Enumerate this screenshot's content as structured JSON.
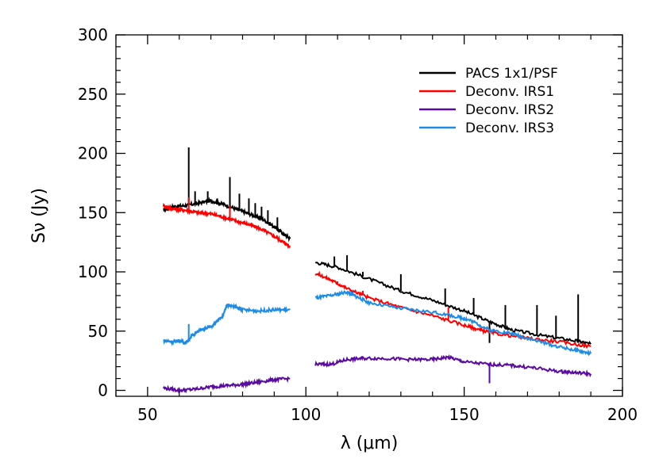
{
  "chart_data": {
    "type": "line",
    "title": "",
    "xlabel": "λ (μm)",
    "ylabel": "Sν (Jy)",
    "xlim": [
      40,
      200
    ],
    "ylim": [
      -5,
      300
    ],
    "xticks": [
      50,
      100,
      150,
      200
    ],
    "yticks": [
      0,
      50,
      100,
      150,
      200,
      250,
      300
    ],
    "grid": false,
    "legend_position": "top-right",
    "series": [
      {
        "name": "PACS 1x1/PSF",
        "color": "#000000",
        "segments": [
          [
            [
              55,
              152
            ],
            [
              58,
              155
            ],
            [
              62,
              156
            ],
            [
              66,
              158
            ],
            [
              70,
              160
            ],
            [
              74,
              157
            ],
            [
              78,
              153
            ],
            [
              82,
              149
            ],
            [
              86,
              145
            ],
            [
              90,
              138
            ],
            [
              93,
              132
            ],
            [
              95,
              128
            ]
          ],
          [
            [
              103,
              108
            ],
            [
              110,
              104
            ],
            [
              120,
              94
            ],
            [
              130,
              84
            ],
            [
              140,
              76
            ],
            [
              150,
              67
            ],
            [
              158,
              58
            ],
            [
              165,
              51
            ],
            [
              175,
              46
            ],
            [
              185,
              42
            ],
            [
              190,
              39
            ]
          ]
        ],
        "spikes": [
          [
            63,
            205
          ],
          [
            65,
            168
          ],
          [
            69,
            168
          ],
          [
            72,
            162
          ],
          [
            76,
            180
          ],
          [
            79,
            166
          ],
          [
            82,
            162
          ],
          [
            84,
            158
          ],
          [
            86,
            155
          ],
          [
            88,
            152
          ],
          [
            91,
            146
          ],
          [
            109,
            113
          ],
          [
            113,
            114
          ],
          [
            118,
            100
          ],
          [
            130,
            98
          ],
          [
            144,
            86
          ],
          [
            153,
            78
          ],
          [
            163,
            72
          ],
          [
            173,
            72
          ],
          [
            179,
            63
          ],
          [
            186,
            81
          ],
          [
            158,
            40
          ]
        ]
      },
      {
        "name": "Deconv. IRS1",
        "color": "#ff0000",
        "segments": [
          [
            [
              55,
              156
            ],
            [
              58,
              153
            ],
            [
              62,
              152
            ],
            [
              66,
              150
            ],
            [
              70,
              149
            ],
            [
              74,
              146
            ],
            [
              78,
              143
            ],
            [
              82,
              140
            ],
            [
              86,
              136
            ],
            [
              90,
              130
            ],
            [
              93,
              125
            ],
            [
              95,
              121
            ]
          ],
          [
            [
              103,
              99
            ],
            [
              108,
              93
            ],
            [
              113,
              86
            ],
            [
              120,
              78
            ],
            [
              130,
              70
            ],
            [
              140,
              63
            ],
            [
              150,
              55
            ],
            [
              155,
              51
            ],
            [
              160,
              48
            ],
            [
              170,
              44
            ],
            [
              180,
              41
            ],
            [
              190,
              37
            ]
          ]
        ],
        "spikes": [
          [
            63,
            163
          ],
          [
            76,
            156
          ],
          [
            110,
            92
          ],
          [
            118,
            84
          ],
          [
            145,
            70
          ],
          [
            155,
            50
          ]
        ]
      },
      {
        "name": "Deconv. IRS2",
        "color": "#5a0ca0",
        "segments": [
          [
            [
              55,
              2
            ],
            [
              60,
              0
            ],
            [
              65,
              1
            ],
            [
              70,
              3
            ],
            [
              75,
              4
            ],
            [
              80,
              5
            ],
            [
              85,
              7
            ],
            [
              90,
              9
            ],
            [
              95,
              10
            ]
          ],
          [
            [
              103,
              22
            ],
            [
              108,
              22
            ],
            [
              113,
              26
            ],
            [
              118,
              27
            ],
            [
              125,
              27
            ],
            [
              133,
              26
            ],
            [
              140,
              26
            ],
            [
              145,
              28
            ],
            [
              150,
              24
            ],
            [
              158,
              22
            ],
            [
              165,
              21
            ],
            [
              172,
              19
            ],
            [
              180,
              16
            ],
            [
              185,
              15
            ],
            [
              190,
              14
            ]
          ]
        ],
        "spikes": [
          [
            158,
            6
          ]
        ]
      },
      {
        "name": "Deconv. IRS3",
        "color": "#1e8ce6",
        "segments": [
          [
            [
              55,
              42
            ],
            [
              58,
              41
            ],
            [
              60,
              42
            ],
            [
              62,
              40
            ],
            [
              64,
              46
            ],
            [
              66,
              50
            ],
            [
              68,
              52
            ],
            [
              70,
              54
            ],
            [
              72,
              58
            ],
            [
              74,
              64
            ],
            [
              75,
              72
            ],
            [
              77,
              71
            ],
            [
              80,
              68
            ],
            [
              85,
              67
            ],
            [
              90,
              68
            ],
            [
              95,
              68
            ]
          ],
          [
            [
              103,
              78
            ],
            [
              108,
              80
            ],
            [
              113,
              83
            ],
            [
              116,
              79
            ],
            [
              120,
              74
            ],
            [
              130,
              69
            ],
            [
              140,
              66
            ],
            [
              148,
              62
            ],
            [
              152,
              59
            ],
            [
              158,
              51
            ],
            [
              165,
              48
            ],
            [
              170,
              44
            ],
            [
              178,
              38
            ],
            [
              185,
              34
            ],
            [
              190,
              31
            ]
          ]
        ],
        "spikes": [
          [
            63,
            56
          ],
          [
            150,
            62
          ]
        ]
      }
    ]
  }
}
